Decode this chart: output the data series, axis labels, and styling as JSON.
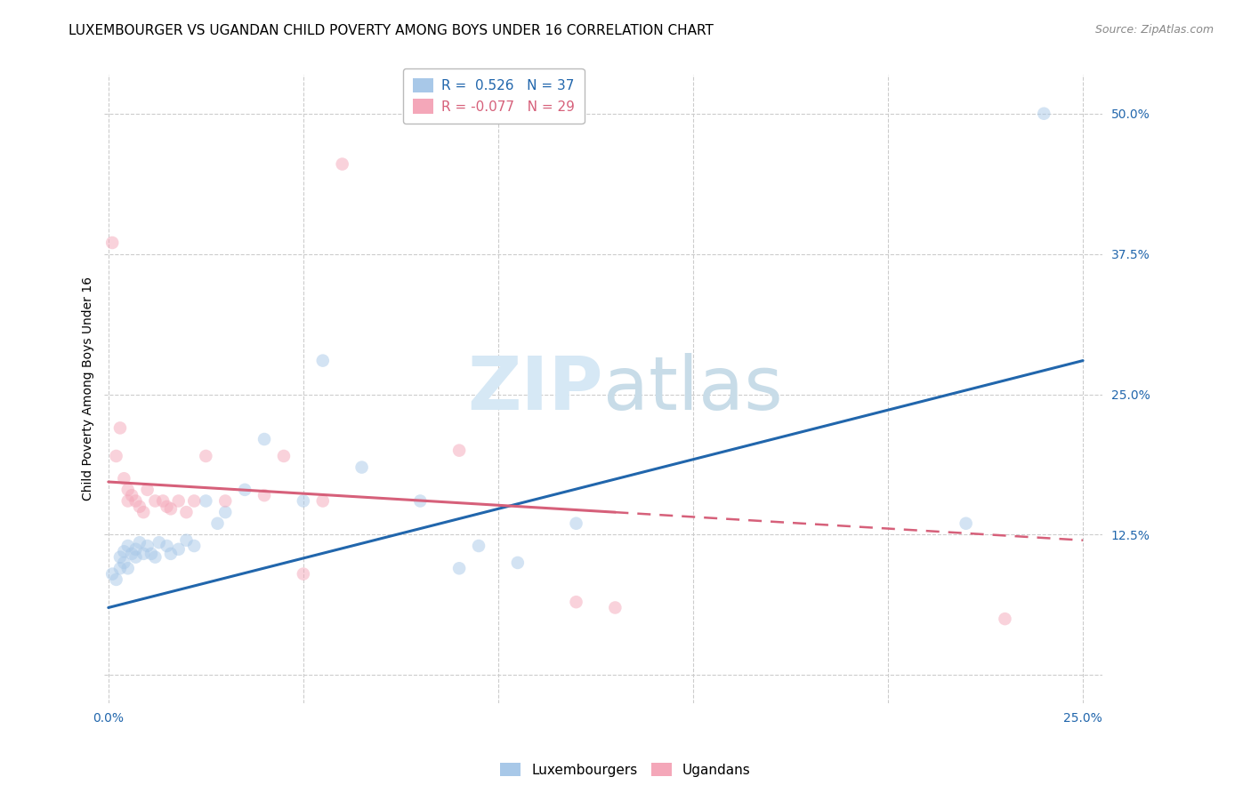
{
  "title": "LUXEMBOURGER VS UGANDAN CHILD POVERTY AMONG BOYS UNDER 16 CORRELATION CHART",
  "source": "Source: ZipAtlas.com",
  "ylabel": "Child Poverty Among Boys Under 16",
  "xlabel": "",
  "watermark": "ZIPatlas",
  "xlim": [
    -0.001,
    0.255
  ],
  "ylim": [
    -0.025,
    0.535
  ],
  "xticks": [
    0.0,
    0.05,
    0.1,
    0.15,
    0.2,
    0.25
  ],
  "yticks": [
    0.0,
    0.125,
    0.25,
    0.375,
    0.5
  ],
  "xtick_labels": [
    "0.0%",
    "",
    "",
    "",
    "",
    "25.0%"
  ],
  "right_ytick_labels": [
    "",
    "12.5%",
    "25.0%",
    "37.5%",
    "50.0%"
  ],
  "legend_blue_label": "Luxembourgers",
  "legend_pink_label": "Ugandans",
  "R_blue": 0.526,
  "N_blue": 37,
  "R_pink": -0.077,
  "N_pink": 29,
  "blue_color": "#a8c8e8",
  "pink_color": "#f4a7b9",
  "blue_line_color": "#2166ac",
  "pink_line_color": "#d6607a",
  "blue_scatter_x": [
    0.001,
    0.002,
    0.003,
    0.003,
    0.004,
    0.004,
    0.005,
    0.005,
    0.006,
    0.007,
    0.007,
    0.008,
    0.009,
    0.01,
    0.011,
    0.012,
    0.013,
    0.015,
    0.016,
    0.018,
    0.02,
    0.022,
    0.025,
    0.028,
    0.03,
    0.035,
    0.04,
    0.05,
    0.055,
    0.065,
    0.08,
    0.09,
    0.095,
    0.105,
    0.12,
    0.22,
    0.24
  ],
  "blue_scatter_y": [
    0.09,
    0.085,
    0.095,
    0.105,
    0.1,
    0.11,
    0.095,
    0.115,
    0.108,
    0.105,
    0.112,
    0.118,
    0.108,
    0.115,
    0.108,
    0.105,
    0.118,
    0.115,
    0.108,
    0.112,
    0.12,
    0.115,
    0.155,
    0.135,
    0.145,
    0.165,
    0.21,
    0.155,
    0.28,
    0.185,
    0.155,
    0.095,
    0.115,
    0.1,
    0.135,
    0.135,
    0.5
  ],
  "pink_scatter_x": [
    0.001,
    0.002,
    0.003,
    0.004,
    0.005,
    0.005,
    0.006,
    0.007,
    0.008,
    0.009,
    0.01,
    0.012,
    0.014,
    0.015,
    0.016,
    0.018,
    0.02,
    0.022,
    0.025,
    0.03,
    0.04,
    0.045,
    0.05,
    0.055,
    0.06,
    0.09,
    0.12,
    0.13,
    0.23
  ],
  "pink_scatter_y": [
    0.385,
    0.195,
    0.22,
    0.175,
    0.165,
    0.155,
    0.16,
    0.155,
    0.15,
    0.145,
    0.165,
    0.155,
    0.155,
    0.15,
    0.148,
    0.155,
    0.145,
    0.155,
    0.195,
    0.155,
    0.16,
    0.195,
    0.09,
    0.155,
    0.455,
    0.2,
    0.065,
    0.06,
    0.05
  ],
  "blue_regline_x": [
    0.0,
    0.25
  ],
  "blue_regline_y": [
    0.06,
    0.28
  ],
  "pink_regline_x": [
    0.0,
    0.25
  ],
  "pink_regline_y": [
    0.172,
    0.12
  ],
  "marker_size": 110,
  "alpha": 0.5,
  "grid_color": "#cccccc",
  "background_color": "#ffffff",
  "title_fontsize": 11,
  "axis_label_fontsize": 10,
  "tick_fontsize": 10,
  "legend_fontsize": 11,
  "watermark_color": "#d6e8f5"
}
